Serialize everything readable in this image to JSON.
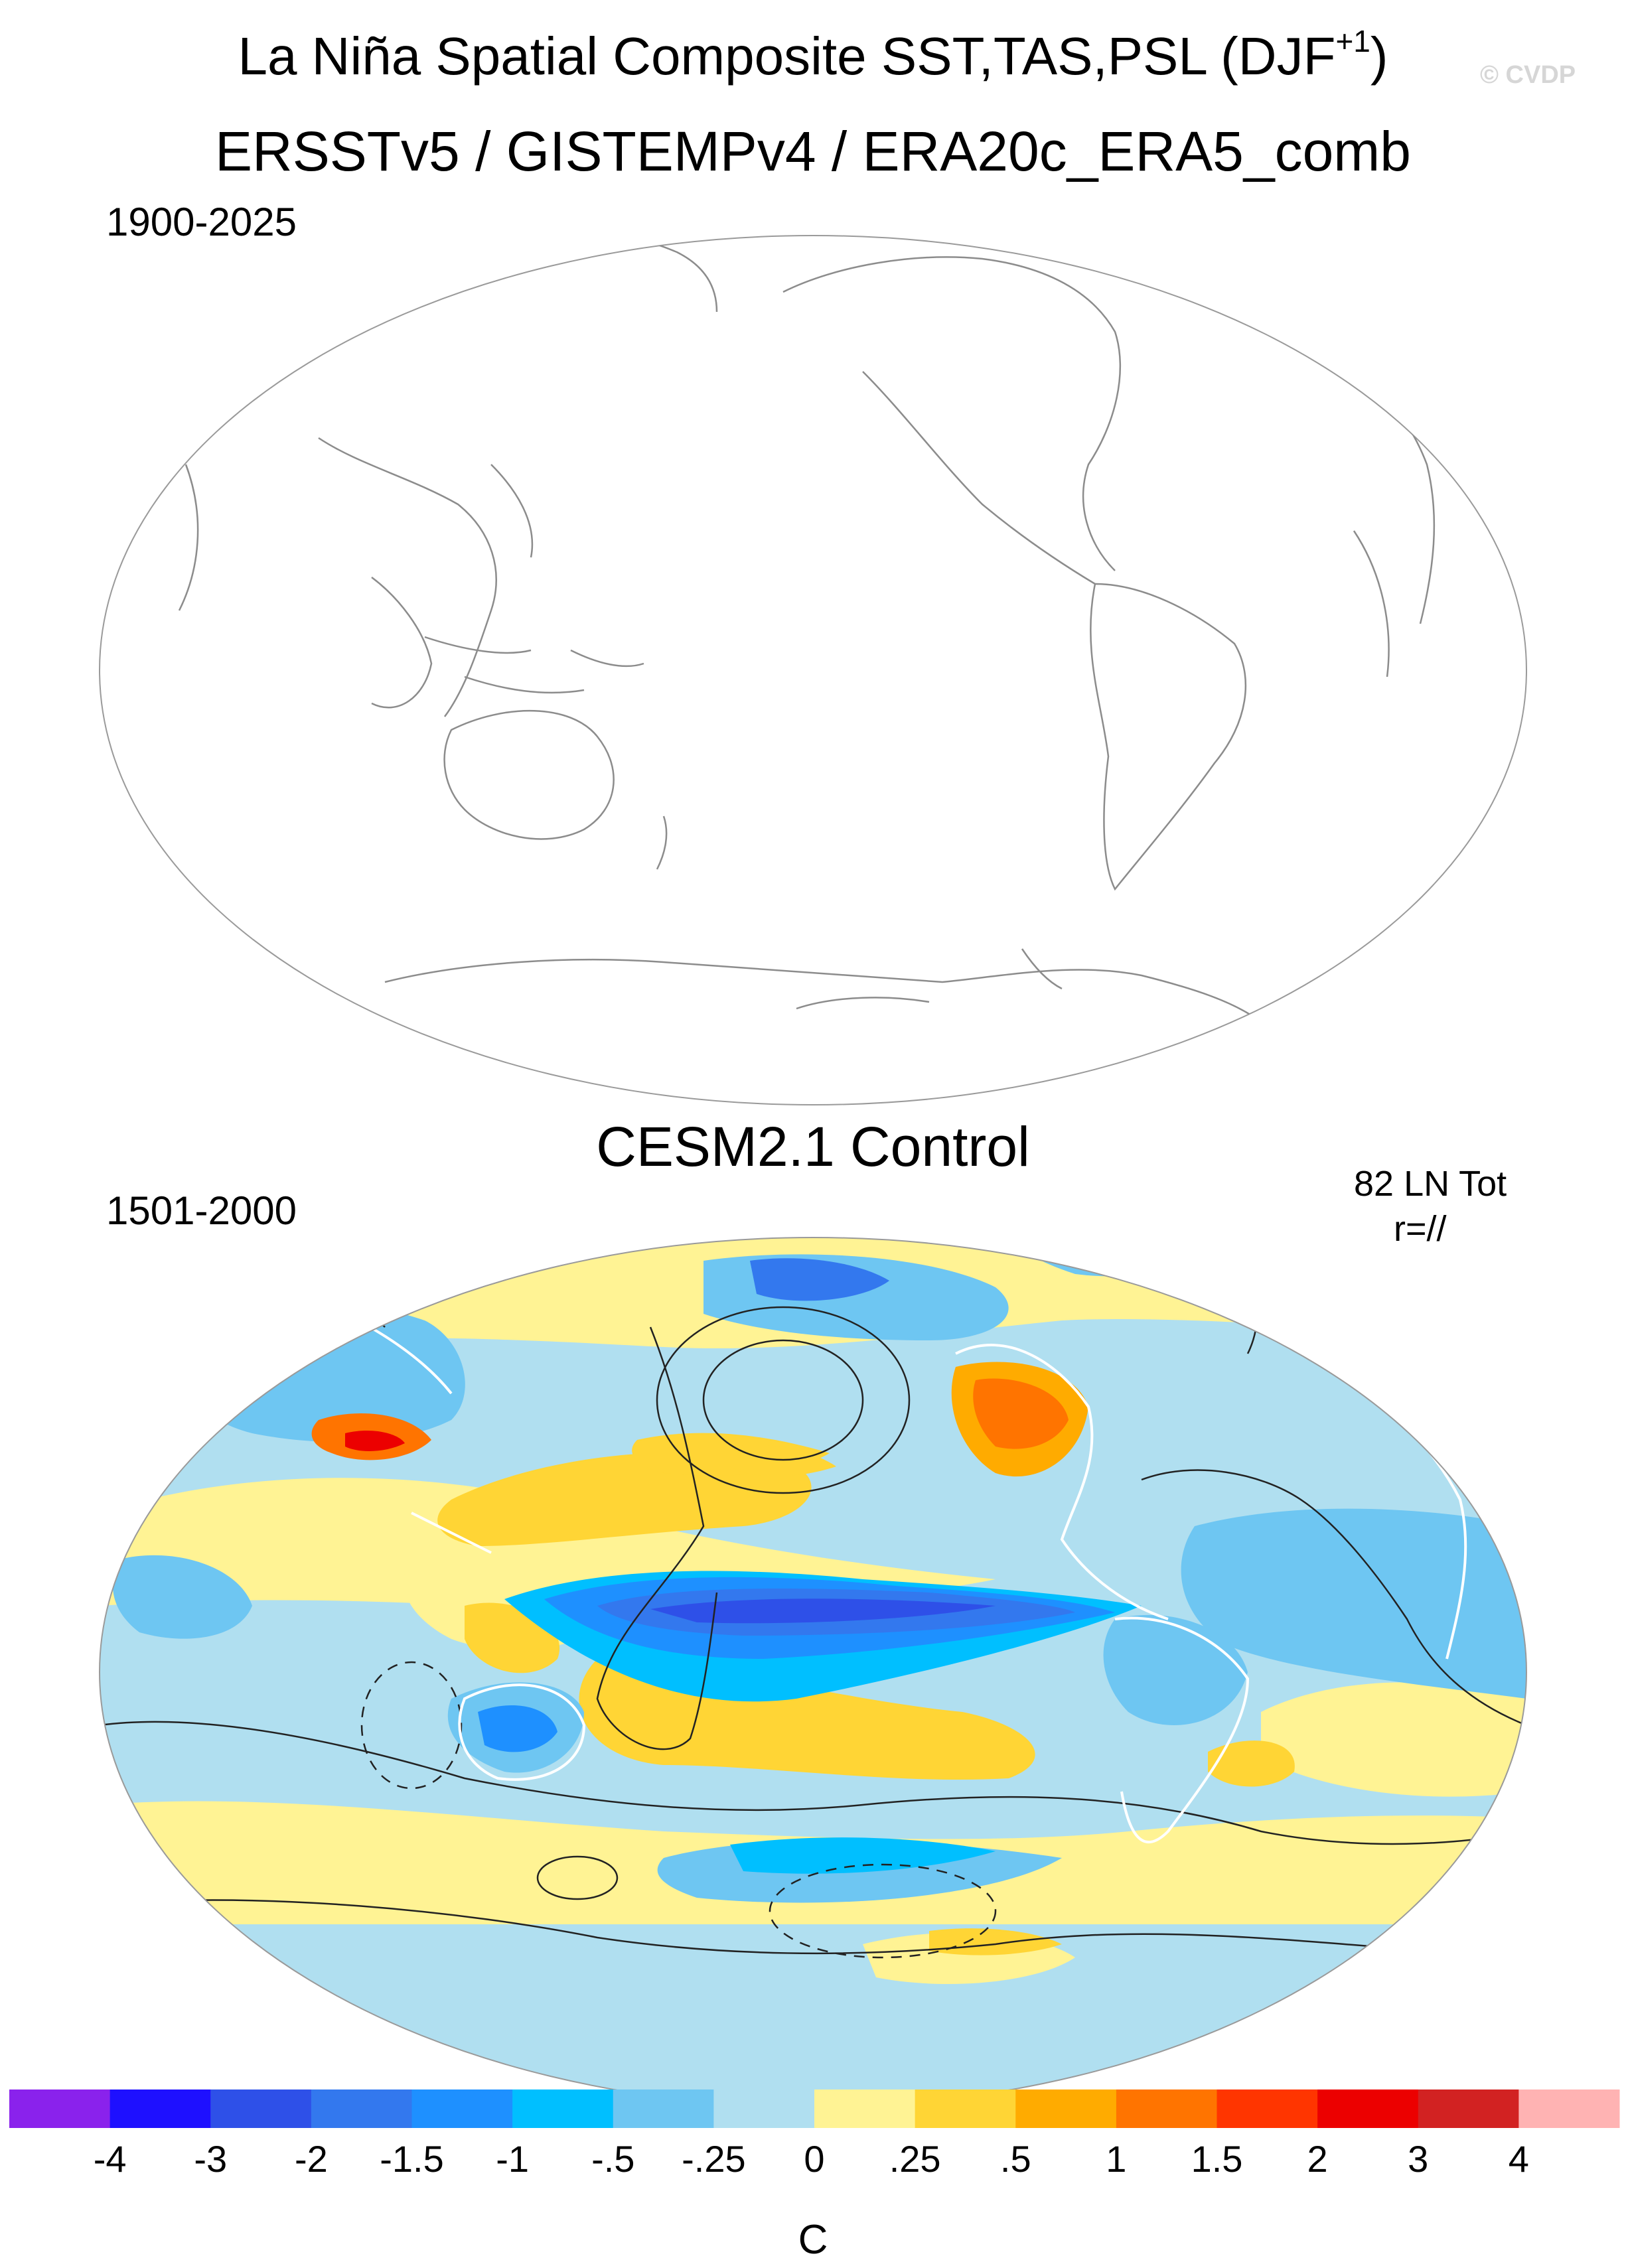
{
  "header": {
    "title_prefix": "La Niña Spatial Composite SST,TAS,PSL (DJF",
    "title_sup": "+1",
    "title_suffix": ")",
    "watermark": "© CVDP"
  },
  "panel_obs": {
    "title": "ERSSTv5 / GISTEMPv4 / ERA20c_ERA5_comb",
    "period": "1900-2025"
  },
  "panel_model": {
    "title": "CESM2.1 Control",
    "period": "1501-2000",
    "event_count": "82 LN Tot",
    "pattern_corr": "r=//"
  },
  "colorbar": {
    "unit": "C",
    "colors": [
      "#8a22ec",
      "#1e10ff",
      "#2e50e8",
      "#3378ee",
      "#1e90ff",
      "#00bfff",
      "#6ec6f2",
      "#b0dff0",
      "#fff394",
      "#ffd535",
      "#ffab00",
      "#ff7400",
      "#ff3500",
      "#ec0000",
      "#d22222",
      "#ffb3b3"
    ],
    "labels": [
      "-4",
      "-3",
      "-2",
      "-1.5",
      "-1",
      "-.5",
      "-.25",
      "0",
      ".25",
      ".5",
      "1",
      "1.5",
      "2",
      "3",
      "4"
    ]
  }
}
